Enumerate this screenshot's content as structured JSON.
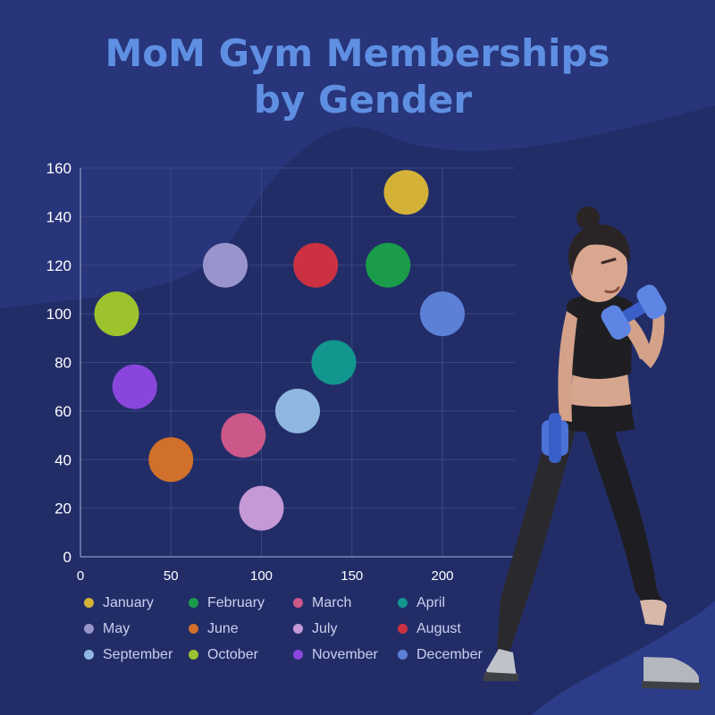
{
  "title": {
    "line1": "MoM Gym Memberships",
    "line2": "by Gender"
  },
  "colors": {
    "background": "#222d68",
    "title": "#5f8fe2",
    "axis_text": "#ffffff",
    "legend_text": "#c9d0ec"
  },
  "chart_data": {
    "type": "scatter",
    "title": "MoM Gym Memberships by Gender",
    "xlabel": "",
    "ylabel": "",
    "xlim": [
      0,
      240
    ],
    "ylim": [
      0,
      160
    ],
    "x_ticks": [
      0,
      50,
      100,
      150,
      200
    ],
    "y_ticks": [
      0,
      20,
      40,
      60,
      80,
      100,
      120,
      140,
      160
    ],
    "grid": true,
    "legend_position": "bottom",
    "series": [
      {
        "name": "January",
        "color": "#d4b237",
        "points": [
          {
            "x": 180,
            "y": 150
          }
        ]
      },
      {
        "name": "February",
        "color": "#1a9c4a",
        "points": [
          {
            "x": 170,
            "y": 120
          }
        ]
      },
      {
        "name": "March",
        "color": "#cc5789",
        "points": [
          {
            "x": 90,
            "y": 50
          }
        ]
      },
      {
        "name": "April",
        "color": "#13968e",
        "points": [
          {
            "x": 140,
            "y": 80
          }
        ]
      },
      {
        "name": "May",
        "color": "#9a94cc",
        "points": [
          {
            "x": 80,
            "y": 120
          }
        ]
      },
      {
        "name": "June",
        "color": "#d0702a",
        "points": [
          {
            "x": 50,
            "y": 40
          }
        ]
      },
      {
        "name": "July",
        "color": "#c499d6",
        "points": [
          {
            "x": 100,
            "y": 20
          }
        ]
      },
      {
        "name": "August",
        "color": "#cc3141",
        "points": [
          {
            "x": 130,
            "y": 120
          }
        ]
      },
      {
        "name": "September",
        "color": "#8fb7e0",
        "points": [
          {
            "x": 120,
            "y": 60
          }
        ]
      },
      {
        "name": "October",
        "color": "#9cc22e",
        "points": [
          {
            "x": 20,
            "y": 100
          }
        ]
      },
      {
        "name": "November",
        "color": "#8a46dc",
        "points": [
          {
            "x": 30,
            "y": 70
          }
        ]
      },
      {
        "name": "December",
        "color": "#5c80d6",
        "points": [
          {
            "x": 200,
            "y": 100
          }
        ]
      }
    ]
  }
}
